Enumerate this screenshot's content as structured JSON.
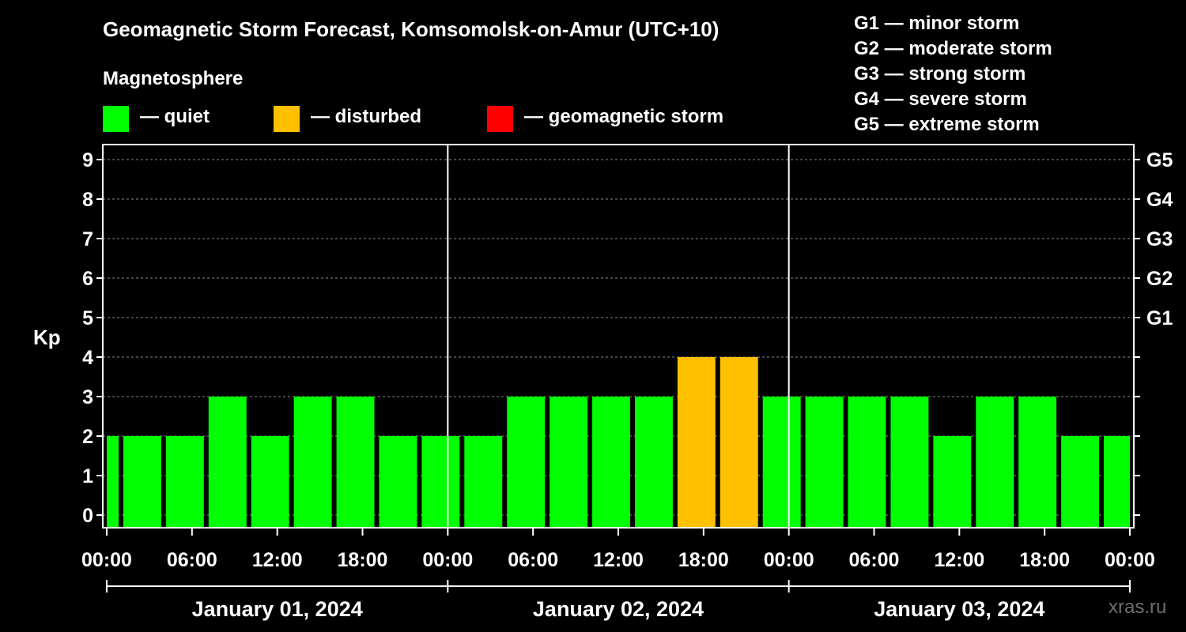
{
  "header": {
    "title": "Geomagnetic Storm Forecast, Komsomolsk-on-Amur (UTC+10)"
  },
  "legend": {
    "heading": "Magnetosphere",
    "items": [
      {
        "label": "— quiet",
        "color": "#00ff00"
      },
      {
        "label": "— disturbed",
        "color": "#ffc000"
      },
      {
        "label": "— geomagnetic storm",
        "color": "#ff0000"
      }
    ]
  },
  "storm_levels": [
    "G1 — minor storm",
    "G2 — moderate storm",
    "G3 — strong storm",
    "G4 — severe storm",
    "G5 — extreme storm"
  ],
  "watermark": "xras.ru",
  "chart_data": {
    "type": "bar",
    "title": "Geomagnetic Storm Forecast, Komsomolsk-on-Amur (UTC+10)",
    "ylabel": "Kp",
    "xlabel": "",
    "ylim": [
      0,
      9
    ],
    "yticks": [
      "0",
      "1",
      "2",
      "3",
      "4",
      "5",
      "6",
      "7",
      "8",
      "9"
    ],
    "right_ticks": [
      {
        "kp": 5,
        "label": "G1"
      },
      {
        "kp": 6,
        "label": "G2"
      },
      {
        "kp": 7,
        "label": "G3"
      },
      {
        "kp": 8,
        "label": "G4"
      },
      {
        "kp": 9,
        "label": "G5"
      }
    ],
    "xtick_labels": [
      "00:00",
      "06:00",
      "12:00",
      "18:00",
      "00:00",
      "06:00",
      "12:00",
      "18:00",
      "00:00",
      "06:00",
      "12:00",
      "18:00",
      "00:00"
    ],
    "day_labels": [
      "January 01, 2024",
      "January 02, 2024",
      "January 03, 2024"
    ],
    "x_range_hours": [
      0,
      72
    ],
    "bars": [
      {
        "start": 0,
        "end": 1,
        "kp": 2,
        "status": "quiet"
      },
      {
        "start": 1,
        "end": 4,
        "kp": 2,
        "status": "quiet"
      },
      {
        "start": 4,
        "end": 7,
        "kp": 2,
        "status": "quiet"
      },
      {
        "start": 7,
        "end": 10,
        "kp": 3,
        "status": "quiet"
      },
      {
        "start": 10,
        "end": 13,
        "kp": 2,
        "status": "quiet"
      },
      {
        "start": 13,
        "end": 16,
        "kp": 3,
        "status": "quiet"
      },
      {
        "start": 16,
        "end": 19,
        "kp": 3,
        "status": "quiet"
      },
      {
        "start": 19,
        "end": 22,
        "kp": 2,
        "status": "quiet"
      },
      {
        "start": 22,
        "end": 25,
        "kp": 2,
        "status": "quiet"
      },
      {
        "start": 25,
        "end": 28,
        "kp": 2,
        "status": "quiet"
      },
      {
        "start": 28,
        "end": 31,
        "kp": 3,
        "status": "quiet"
      },
      {
        "start": 31,
        "end": 34,
        "kp": 3,
        "status": "quiet"
      },
      {
        "start": 34,
        "end": 37,
        "kp": 3,
        "status": "quiet"
      },
      {
        "start": 37,
        "end": 40,
        "kp": 3,
        "status": "quiet"
      },
      {
        "start": 40,
        "end": 43,
        "kp": 4,
        "status": "disturbed"
      },
      {
        "start": 43,
        "end": 46,
        "kp": 4,
        "status": "disturbed"
      },
      {
        "start": 46,
        "end": 49,
        "kp": 3,
        "status": "quiet"
      },
      {
        "start": 49,
        "end": 52,
        "kp": 3,
        "status": "quiet"
      },
      {
        "start": 52,
        "end": 55,
        "kp": 3,
        "status": "quiet"
      },
      {
        "start": 55,
        "end": 58,
        "kp": 3,
        "status": "quiet"
      },
      {
        "start": 58,
        "end": 61,
        "kp": 2,
        "status": "quiet"
      },
      {
        "start": 61,
        "end": 64,
        "kp": 3,
        "status": "quiet"
      },
      {
        "start": 64,
        "end": 67,
        "kp": 3,
        "status": "quiet"
      },
      {
        "start": 67,
        "end": 70,
        "kp": 2,
        "status": "quiet"
      },
      {
        "start": 70,
        "end": 72,
        "kp": 2,
        "status": "quiet"
      }
    ],
    "grid": "dashed horizontal at each Kp",
    "day_separators_hours": [
      24,
      48
    ],
    "colors": {
      "quiet": "#00ff00",
      "disturbed": "#ffc000",
      "storm": "#ff0000"
    }
  }
}
